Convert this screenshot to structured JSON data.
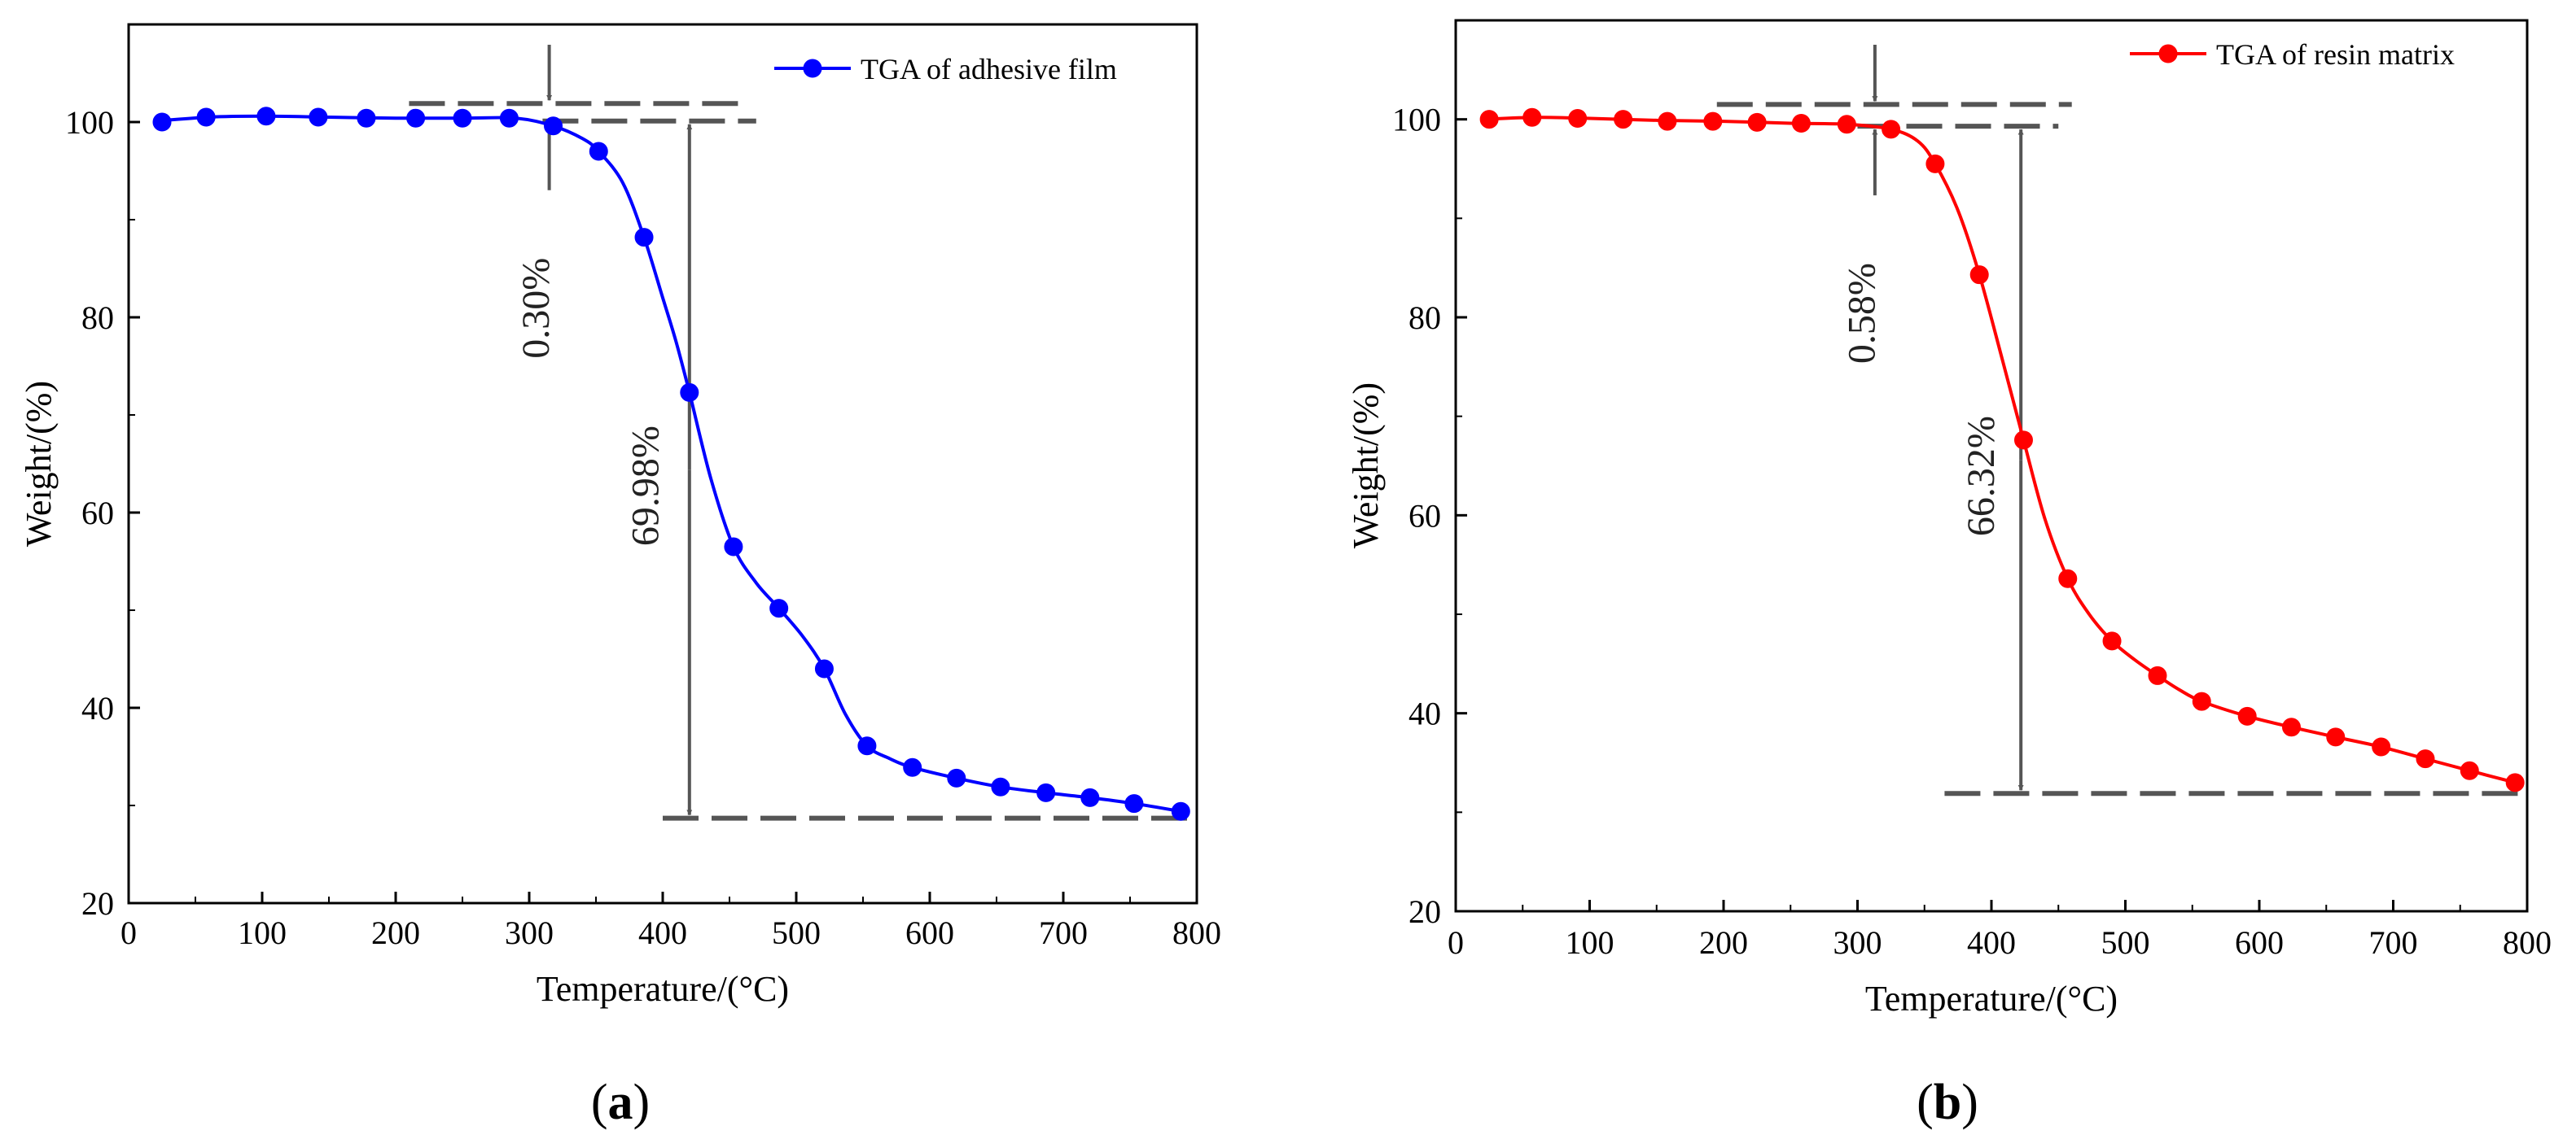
{
  "chart_data": [
    {
      "panel": "a",
      "panel_label": "a",
      "type": "line",
      "xlabel": "Temperature/(°C)",
      "ylabel": "Weight/(%)",
      "xlim": [
        0,
        800
      ],
      "ylim": [
        20,
        110
      ],
      "xticks": [
        0,
        100,
        200,
        300,
        400,
        500,
        600,
        700,
        800
      ],
      "yticks": [
        20,
        40,
        60,
        80,
        100
      ],
      "grid": false,
      "legend_position": "top-right",
      "series": [
        {
          "name": "TGA of adhesive film",
          "color": "#0000ff",
          "markers": [
            [
              25,
              100.0
            ],
            [
              58,
              100.5
            ],
            [
              103,
              100.6
            ],
            [
              142,
              100.5
            ],
            [
              178,
              100.4
            ],
            [
              215,
              100.4
            ],
            [
              250,
              100.4
            ],
            [
              285,
              100.4
            ],
            [
              318,
              99.6
            ],
            [
              352,
              97.0
            ],
            [
              386,
              88.2
            ],
            [
              420,
              72.3
            ],
            [
              453,
              56.5
            ],
            [
              487,
              50.2
            ],
            [
              521,
              44.0
            ],
            [
              553,
              36.1
            ],
            [
              587,
              33.9
            ],
            [
              620,
              32.8
            ],
            [
              653,
              31.9
            ],
            [
              687,
              31.3
            ],
            [
              720,
              30.8
            ],
            [
              753,
              30.2
            ],
            [
              788,
              29.4
            ]
          ],
          "curve": [
            [
              20,
              100.1
            ],
            [
              60,
              100.5
            ],
            [
              100,
              100.6
            ],
            [
              150,
              100.5
            ],
            [
              200,
              100.4
            ],
            [
              250,
              100.4
            ],
            [
              290,
              100.4
            ],
            [
              318,
              99.6
            ],
            [
              340,
              98.3
            ],
            [
              352,
              97.0
            ],
            [
              370,
              93.8
            ],
            [
              386,
              88.2
            ],
            [
              400,
              82.0
            ],
            [
              410,
              77.5
            ],
            [
              420,
              72.3
            ],
            [
              436,
              63.5
            ],
            [
              453,
              56.5
            ],
            [
              470,
              52.8
            ],
            [
              487,
              50.2
            ],
            [
              505,
              47.3
            ],
            [
              521,
              44.0
            ],
            [
              537,
              39.3
            ],
            [
              553,
              36.1
            ],
            [
              570,
              34.8
            ],
            [
              587,
              33.9
            ],
            [
              620,
              32.8
            ],
            [
              653,
              31.9
            ],
            [
              687,
              31.3
            ],
            [
              720,
              30.8
            ],
            [
              753,
              30.2
            ],
            [
              788,
              29.4
            ]
          ]
        }
      ],
      "annotations": {
        "small_loss_label": "0.30%",
        "large_loss_label": "69.98%",
        "small_arrow_x": 315,
        "large_arrow_x": 420,
        "upper_dash": {
          "y": 101.9,
          "x_from": 210,
          "x_to": 465
        },
        "lower_dash": {
          "y": 100.1,
          "x_from": 310,
          "x_to": 470
        },
        "bottom_dash": {
          "y": 28.7,
          "x_from": 400,
          "x_to": 800
        },
        "small_label_x": 305,
        "large_label_x": 387
      }
    },
    {
      "panel": "b",
      "panel_label": "b",
      "type": "line",
      "xlabel": "Temperature/(°C)",
      "ylabel": "Weight/(%)",
      "xlim": [
        0,
        800
      ],
      "ylim": [
        20,
        110
      ],
      "xticks": [
        0,
        100,
        200,
        300,
        400,
        500,
        600,
        700,
        800
      ],
      "yticks": [
        20,
        40,
        60,
        80,
        100
      ],
      "grid": false,
      "legend_position": "top-right",
      "series": [
        {
          "name": "TGA of resin matrix",
          "color": "#ff0000",
          "markers": [
            [
              25,
              100.0
            ],
            [
              57,
              100.2
            ],
            [
              91,
              100.1
            ],
            [
              125,
              100.0
            ],
            [
              158,
              99.8
            ],
            [
              192,
              99.8
            ],
            [
              225,
              99.7
            ],
            [
              258,
              99.6
            ],
            [
              292,
              99.5
            ],
            [
              325,
              99.0
            ],
            [
              358,
              95.5
            ],
            [
              391,
              84.3
            ],
            [
              424,
              67.6
            ],
            [
              457,
              53.6
            ],
            [
              490,
              47.3
            ],
            [
              524,
              43.8
            ],
            [
              557,
              41.2
            ],
            [
              591,
              39.7
            ],
            [
              624,
              38.6
            ],
            [
              657,
              37.6
            ],
            [
              691,
              36.6
            ],
            [
              724,
              35.4
            ],
            [
              757,
              34.2
            ],
            [
              791,
              33.0
            ]
          ],
          "curve": [
            [
              20,
              100.0
            ],
            [
              60,
              100.2
            ],
            [
              100,
              100.1
            ],
            [
              150,
              99.9
            ],
            [
              200,
              99.8
            ],
            [
              250,
              99.6
            ],
            [
              292,
              99.5
            ],
            [
              325,
              99.0
            ],
            [
              345,
              97.8
            ],
            [
              358,
              95.5
            ],
            [
              375,
              90.8
            ],
            [
              391,
              84.3
            ],
            [
              408,
              75.8
            ],
            [
              424,
              67.6
            ],
            [
              440,
              59.6
            ],
            [
              457,
              53.6
            ],
            [
              473,
              50.0
            ],
            [
              490,
              47.3
            ],
            [
              507,
              45.4
            ],
            [
              524,
              43.8
            ],
            [
              540,
              42.4
            ],
            [
              557,
              41.2
            ],
            [
              591,
              39.7
            ],
            [
              624,
              38.6
            ],
            [
              657,
              37.6
            ],
            [
              691,
              36.6
            ],
            [
              724,
              35.4
            ],
            [
              757,
              34.2
            ],
            [
              791,
              33.0
            ]
          ]
        }
      ],
      "annotations": {
        "small_loss_label": "0.58%",
        "large_loss_label": "66.32%",
        "small_arrow_x": 313,
        "large_arrow_x": 422,
        "upper_dash": {
          "y": 101.5,
          "x_from": 195,
          "x_to": 460
        },
        "lower_dash": {
          "y": 99.3,
          "x_from": 300,
          "x_to": 450
        },
        "bottom_dash": {
          "y": 31.9,
          "x_from": 365,
          "x_to": 800
        },
        "small_label_x": 303,
        "large_label_x": 392
      }
    }
  ]
}
